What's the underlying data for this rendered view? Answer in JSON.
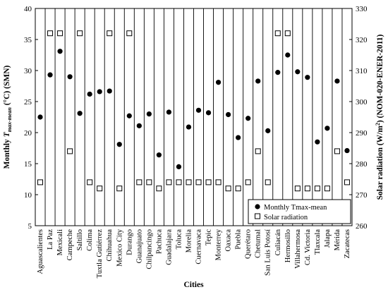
{
  "chart_data": {
    "type": "scatter",
    "xlabel": "Cities",
    "ylabel_left": {
      "main": "Monthly ",
      "var": "T",
      "sub": "max-mean",
      "unit": " (°C) (SMN)"
    },
    "ylabel_right": {
      "main": "Solar radiation (W/m",
      "sup": "2",
      "tail": ") (NOM-020-ENER-2011)"
    },
    "ylim_left": [
      5,
      40
    ],
    "yticks_left": [
      "5",
      "10",
      "15",
      "20",
      "25",
      "30",
      "35",
      "40"
    ],
    "ylim_right": [
      260,
      330
    ],
    "yticks_right": [
      "260",
      "270",
      "280",
      "290",
      "300",
      "310",
      "320",
      "330"
    ],
    "grid": "vertical lines between categories",
    "legend_position": "bottom-right",
    "categories": [
      "Aguascalientes",
      "La Paz",
      "Mexicali",
      "Campeche",
      "Saltillo",
      "Colima",
      "Tuxtla Gutiérrez",
      "Chihuahua",
      "Mexico City",
      "Durango",
      "Guanajuato",
      "Chilpancingo",
      "Pachuca",
      "Guadalajara",
      "Toluca",
      "Morelia",
      "Cuernavaca",
      "Tepic",
      "Monterrey",
      "Oaxaca",
      "Puebla",
      "Querétaro",
      "Chetumal",
      "San Luis Potosí",
      "Culiacán",
      "Hermosillo",
      "Villahermosa",
      "Cd. Victoria",
      "Tlaxcala",
      "Jalapa",
      "Mérida",
      "Zacatecas"
    ],
    "series": [
      {
        "name": "Monthly Tmax-mean",
        "axis": "left",
        "marker": "filled-circle",
        "values": [
          22.5,
          29.3,
          33.1,
          29.0,
          23.1,
          26.2,
          26.6,
          26.7,
          18.1,
          22.7,
          21.1,
          23.0,
          16.4,
          23.3,
          14.5,
          20.9,
          23.6,
          23.2,
          28.1,
          22.9,
          19.2,
          22.3,
          28.3,
          20.3,
          29.7,
          32.5,
          29.8,
          28.9,
          18.5,
          20.7,
          28.3,
          17.1
        ]
      },
      {
        "name": "Solar radiation",
        "axis": "right",
        "marker": "open-square",
        "values": [
          274,
          322,
          322,
          284,
          322,
          274,
          272,
          322,
          272,
          322,
          274,
          274,
          272,
          274,
          274,
          274,
          274,
          274,
          274,
          272,
          272,
          274,
          284,
          274,
          322,
          322,
          272,
          272,
          272,
          272,
          284,
          274
        ]
      }
    ]
  },
  "colors": {
    "axis": "#000000",
    "marker": "#000000",
    "background": "#ffffff"
  }
}
